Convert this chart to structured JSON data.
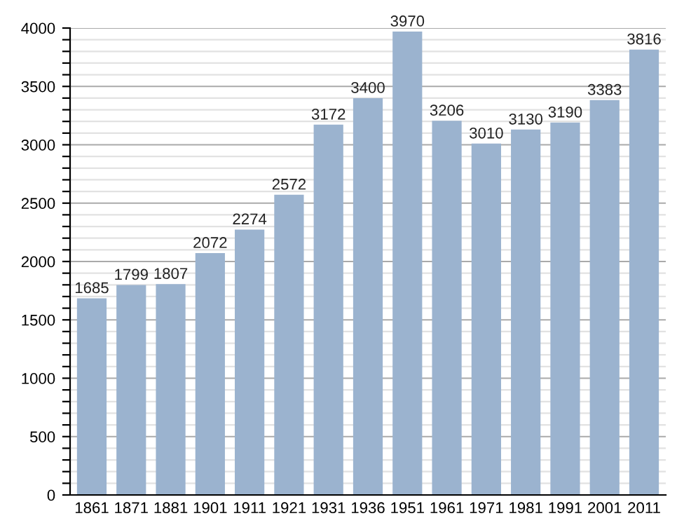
{
  "chart_data": {
    "type": "bar",
    "categories": [
      "1861",
      "1871",
      "1881",
      "1901",
      "1911",
      "1921",
      "1931",
      "1936",
      "1951",
      "1961",
      "1971",
      "1981",
      "1991",
      "2001",
      "2011"
    ],
    "values": [
      1685,
      1799,
      1807,
      2072,
      2274,
      2572,
      3172,
      3400,
      3970,
      3206,
      3010,
      3130,
      3190,
      3383,
      3816
    ],
    "color": "#9bb3cf",
    "data_labels": true,
    "ylim": [
      0,
      4000
    ],
    "yticks": [
      0,
      {
        "value": 100,
        "label": null
      },
      {
        "value": 200,
        "label": null
      },
      {
        "value": 300,
        "label": null
      },
      {
        "value": 400,
        "label": null
      },
      500,
      {
        "value": 600,
        "label": null
      },
      {
        "value": 700,
        "label": null
      },
      {
        "value": 800,
        "label": null
      },
      {
        "value": 900,
        "label": null
      },
      1000,
      {
        "value": 1100,
        "label": null
      },
      {
        "value": 1200,
        "label": null
      },
      {
        "value": 1300,
        "label": null
      },
      {
        "value": 1400,
        "label": null
      },
      1500,
      {
        "value": 1600,
        "label": null
      },
      {
        "value": 1700,
        "label": null
      },
      {
        "value": 1800,
        "label": null
      },
      {
        "value": 1900,
        "label": null
      },
      2000,
      {
        "value": 2100,
        "label": null
      },
      {
        "value": 2200,
        "label": null
      },
      {
        "value": 2300,
        "label": null
      },
      {
        "value": 2400,
        "label": null
      },
      2500,
      {
        "value": 2600,
        "label": null
      },
      {
        "value": 2700,
        "label": null
      },
      {
        "value": 2800,
        "label": null
      },
      {
        "value": 2900,
        "label": null
      },
      3000,
      {
        "value": 3100,
        "label": null
      },
      {
        "value": 3200,
        "label": null
      },
      {
        "value": 3300,
        "label": null
      },
      {
        "value": 3400,
        "label": null
      },
      3500,
      {
        "value": 3600,
        "label": null
      },
      {
        "value": 3700,
        "label": null
      },
      {
        "value": 3800,
        "label": null
      },
      {
        "value": 3900,
        "label": null
      },
      4000
    ],
    "grid": "y"
  }
}
